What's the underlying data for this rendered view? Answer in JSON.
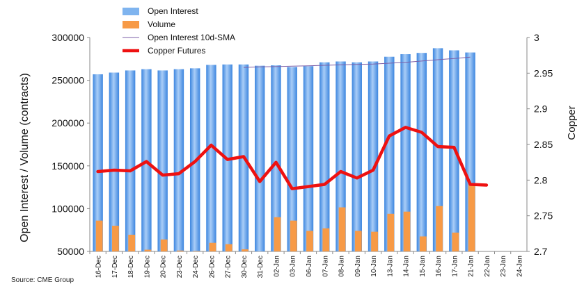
{
  "source": "Source: CME Group",
  "chart_data": {
    "type": "bar",
    "categories": [
      "16-Dec",
      "17-Dec",
      "18-Dec",
      "19-Dec",
      "20-Dec",
      "23-Dec",
      "24-Dec",
      "26-Dec",
      "27-Dec",
      "30-Dec",
      "31-Dec",
      "02-Jan",
      "03-Jan",
      "06-Jan",
      "07-Jan",
      "08-Jan",
      "09-Jan",
      "10-Jan",
      "13-Jan",
      "14-Jan",
      "15-Jan",
      "16-Jan",
      "17-Jan",
      "21-Jan",
      "22-Jan",
      "23-Jan",
      "24-Jan"
    ],
    "ylabel": "Open Interest / Volume (contracts)",
    "ylabel_right": "Copper",
    "ylim": [
      50000,
      300000
    ],
    "yticks": [
      "50000",
      "100000",
      "150000",
      "200000",
      "250000",
      "300000"
    ],
    "ylim_right": [
      2.7,
      3.0
    ],
    "yticks_right": [
      "2.7",
      "2.75",
      "2.8",
      "2.85",
      "2.9",
      "2.95",
      "3"
    ],
    "legend_position": "top-left",
    "grid": false,
    "colors": {
      "open_interest": "#5b9ee8",
      "volume": "#f79a46",
      "sma": "#7b5ea7",
      "copper": "#ee1111"
    },
    "series": [
      {
        "name": "Open Interest",
        "type": "bar",
        "axis": "left",
        "values": [
          257000,
          259000,
          261500,
          263000,
          261500,
          263000,
          264000,
          268000,
          268500,
          268500,
          267000,
          267500,
          265500,
          266500,
          271000,
          272000,
          271000,
          272000,
          277500,
          280500,
          282000,
          287500,
          285000,
          282500,
          null,
          null,
          null
        ]
      },
      {
        "name": "Volume",
        "type": "bar",
        "axis": "left",
        "values": [
          86000,
          80000,
          69500,
          52000,
          64000,
          51000,
          50500,
          60000,
          58500,
          52500,
          null,
          90000,
          86000,
          74000,
          77000,
          101500,
          74000,
          73000,
          94000,
          96500,
          67500,
          103000,
          72000,
          129000,
          null,
          null,
          null
        ]
      },
      {
        "name": "Open Interest 10d-SMA",
        "type": "line",
        "axis": "left",
        "values": [
          null,
          null,
          null,
          null,
          null,
          null,
          null,
          null,
          null,
          265000,
          265700,
          266000,
          266500,
          267000,
          267500,
          268000,
          268500,
          269000,
          270000,
          271000,
          272500,
          274000,
          275500,
          277000,
          null,
          null,
          null
        ]
      },
      {
        "name": "Copper Futures",
        "type": "line",
        "axis": "right",
        "values": [
          2.812,
          2.814,
          2.813,
          2.826,
          2.807,
          2.809,
          2.826,
          2.849,
          2.829,
          2.833,
          2.798,
          2.825,
          2.788,
          2.791,
          2.794,
          2.812,
          2.803,
          2.814,
          2.862,
          2.874,
          2.867,
          2.847,
          2.846,
          2.794,
          2.793,
          null,
          null
        ]
      }
    ]
  }
}
